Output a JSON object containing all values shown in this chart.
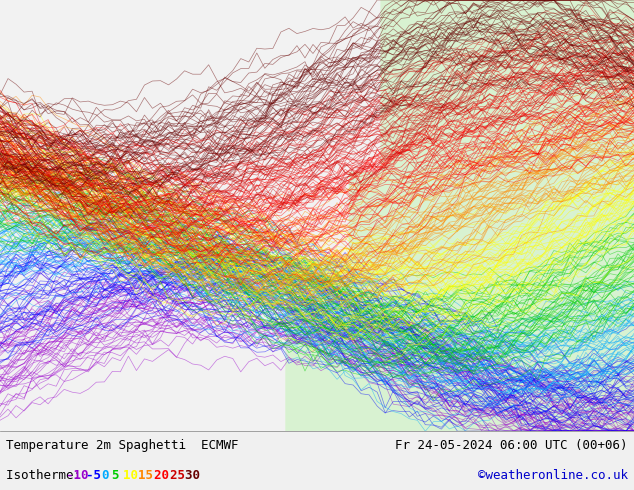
{
  "title_left": "Temperature 2m Spaghetti  ECMWF",
  "title_right": "Fr 24-05-2024 06:00 UTC (00+06)",
  "subtitle_left": "Isotherme: -10 -5 0 5 10 15 20 25 30",
  "subtitle_right": "©weatheronline.co.uk",
  "bg_color": "#f0f0f0",
  "map_bg": "#ffffff",
  "bottom_bar_color": "#e8e8e8",
  "isotherm_values": [
    -10,
    -5,
    0,
    5,
    10,
    15,
    20,
    25,
    30
  ],
  "isotherm_colors": [
    "#9900cc",
    "#0000ff",
    "#00aaff",
    "#00cc00",
    "#ffff00",
    "#ff8800",
    "#ff0000",
    "#cc0000",
    "#660000"
  ],
  "title_fontsize": 9,
  "subtitle_fontsize": 9,
  "fig_width": 6.34,
  "fig_height": 4.9
}
